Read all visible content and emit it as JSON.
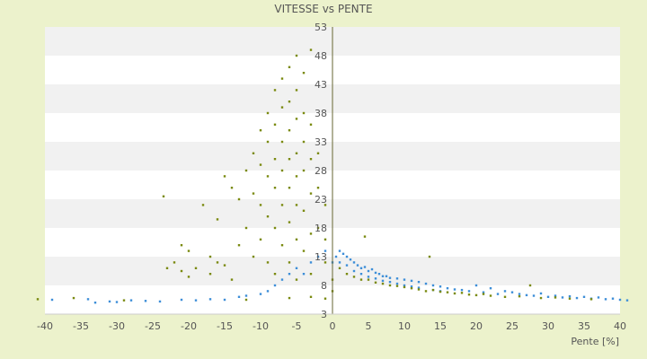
{
  "chart_data": {
    "type": "scatter",
    "title": "VITESSE vs PENTE",
    "xlabel": "Pente [%]",
    "ylabel": "",
    "xlim": [
      -40,
      40
    ],
    "ylim": [
      3,
      53
    ],
    "x_ticks": [
      -40,
      -35,
      -30,
      -25,
      -20,
      -15,
      -10,
      -5,
      0,
      5,
      10,
      15,
      20,
      25,
      30,
      35,
      40
    ],
    "y_ticks": [
      3,
      8,
      13,
      18,
      23,
      28,
      33,
      38,
      43,
      48,
      53
    ],
    "grid": "horizontal alternating bands",
    "legend": "none",
    "colors": {
      "page_background": "#ecf2cc",
      "plot_band_light": "#ffffff",
      "plot_band_dark": "#f1f1f1",
      "blue_points": "#3d8ed8",
      "olive_points": "#7a8a10",
      "zero_axis": "#666633",
      "text": "#555555"
    },
    "series": [
      {
        "color": "#3d8ed8",
        "marker": "dot",
        "points": [
          [
            -39,
            5.5
          ],
          [
            -34,
            5.6
          ],
          [
            -33,
            5
          ],
          [
            -31,
            5.2
          ],
          [
            -30,
            5.1
          ],
          [
            -28,
            5.4
          ],
          [
            -26,
            5.3
          ],
          [
            -24,
            5.2
          ],
          [
            -21,
            5.5
          ],
          [
            -19,
            5.4
          ],
          [
            -17,
            5.6
          ],
          [
            -15,
            5.5
          ],
          [
            -13,
            6
          ],
          [
            -12,
            6.2
          ],
          [
            -10,
            6.5
          ],
          [
            -9,
            7
          ],
          [
            -8,
            8
          ],
          [
            -7,
            9
          ],
          [
            -6,
            10
          ],
          [
            -5,
            11
          ],
          [
            -4,
            10
          ],
          [
            -3,
            12
          ],
          [
            -2,
            13
          ],
          [
            -1,
            14
          ],
          [
            0,
            12
          ],
          [
            0.5,
            13
          ],
          [
            1,
            14
          ],
          [
            1,
            12
          ],
          [
            1.5,
            13.5
          ],
          [
            2,
            13
          ],
          [
            2,
            11.5
          ],
          [
            2.5,
            12.5
          ],
          [
            3,
            12
          ],
          [
            3,
            10.5
          ],
          [
            3.5,
            11.5
          ],
          [
            4,
            11
          ],
          [
            4,
            10
          ],
          [
            4.5,
            11.2
          ],
          [
            5,
            10.5
          ],
          [
            5,
            9.5
          ],
          [
            5.5,
            10.8
          ],
          [
            6,
            10.2
          ],
          [
            6,
            9.2
          ],
          [
            6.5,
            10
          ],
          [
            7,
            9.6
          ],
          [
            7,
            8.8
          ],
          [
            7.5,
            9.6
          ],
          [
            8,
            9.3
          ],
          [
            8,
            8.6
          ],
          [
            9,
            9.2
          ],
          [
            9,
            8.3
          ],
          [
            10,
            9
          ],
          [
            10,
            8
          ],
          [
            11,
            8.8
          ],
          [
            11,
            7.8
          ],
          [
            12,
            8.6
          ],
          [
            12,
            7.6
          ],
          [
            13,
            8.3
          ],
          [
            14,
            8
          ],
          [
            14,
            7.2
          ],
          [
            15,
            7.8
          ],
          [
            15,
            7
          ],
          [
            16,
            7.5
          ],
          [
            17,
            7.3
          ],
          [
            18,
            7.2
          ],
          [
            19,
            7
          ],
          [
            20,
            8
          ],
          [
            21,
            6.8
          ],
          [
            22,
            7.5
          ],
          [
            23,
            6.5
          ],
          [
            24,
            7
          ],
          [
            25,
            6.8
          ],
          [
            26,
            6.5
          ],
          [
            27,
            6.3
          ],
          [
            28,
            6.2
          ],
          [
            29,
            6.6
          ],
          [
            30,
            6
          ],
          [
            31,
            6.2
          ],
          [
            32,
            5.9
          ],
          [
            33,
            6.1
          ],
          [
            34,
            5.8
          ],
          [
            35,
            6
          ],
          [
            36,
            5.7
          ],
          [
            37,
            5.9
          ],
          [
            38,
            5.6
          ],
          [
            39,
            5.7
          ],
          [
            40,
            5.5
          ],
          [
            41,
            5.4
          ]
        ]
      },
      {
        "color": "#7a8a10",
        "marker": "dot",
        "points": [
          [
            -41,
            5.6
          ],
          [
            -36,
            5.8
          ],
          [
            -29,
            5.4
          ],
          [
            -23.5,
            23.5
          ],
          [
            -23,
            11
          ],
          [
            -22,
            12
          ],
          [
            -21,
            15
          ],
          [
            -21,
            10.5
          ],
          [
            -20,
            14
          ],
          [
            -20,
            9.5
          ],
          [
            -19,
            11
          ],
          [
            -18,
            22
          ],
          [
            -17,
            13
          ],
          [
            -17,
            10
          ],
          [
            -16,
            12
          ],
          [
            -16,
            19.5
          ],
          [
            -15,
            27
          ],
          [
            -15,
            11.5
          ],
          [
            -14,
            25
          ],
          [
            -14,
            9
          ],
          [
            -13,
            23
          ],
          [
            -13,
            15
          ],
          [
            -12,
            28
          ],
          [
            -12,
            18
          ],
          [
            -11,
            31
          ],
          [
            -11,
            24
          ],
          [
            -11,
            13
          ],
          [
            -10,
            35
          ],
          [
            -10,
            29
          ],
          [
            -10,
            22
          ],
          [
            -10,
            16
          ],
          [
            -9,
            38
          ],
          [
            -9,
            33
          ],
          [
            -9,
            27
          ],
          [
            -9,
            20
          ],
          [
            -9,
            12
          ],
          [
            -8,
            42
          ],
          [
            -8,
            36
          ],
          [
            -8,
            30
          ],
          [
            -8,
            25
          ],
          [
            -8,
            18
          ],
          [
            -8,
            10
          ],
          [
            -7,
            44
          ],
          [
            -7,
            39
          ],
          [
            -7,
            33
          ],
          [
            -7,
            28
          ],
          [
            -7,
            22
          ],
          [
            -7,
            15
          ],
          [
            -6,
            46
          ],
          [
            -6,
            40
          ],
          [
            -6,
            35
          ],
          [
            -6,
            30
          ],
          [
            -6,
            25
          ],
          [
            -6,
            19
          ],
          [
            -6,
            12
          ],
          [
            -5,
            48
          ],
          [
            -5,
            42
          ],
          [
            -5,
            37
          ],
          [
            -5,
            31
          ],
          [
            -5,
            27
          ],
          [
            -5,
            22
          ],
          [
            -5,
            16
          ],
          [
            -5,
            9
          ],
          [
            -4,
            45
          ],
          [
            -4,
            38
          ],
          [
            -4,
            33
          ],
          [
            -4,
            28
          ],
          [
            -4,
            21
          ],
          [
            -4,
            14
          ],
          [
            -3,
            49
          ],
          [
            -3,
            36
          ],
          [
            -3,
            30
          ],
          [
            -3,
            24
          ],
          [
            -3,
            17
          ],
          [
            -3,
            10
          ],
          [
            -2,
            31
          ],
          [
            -2,
            25
          ],
          [
            -2,
            18
          ],
          [
            -1,
            22
          ],
          [
            -1,
            16
          ],
          [
            -1,
            12
          ],
          [
            0,
            9
          ],
          [
            0,
            7
          ],
          [
            1,
            11
          ],
          [
            2,
            10
          ],
          [
            3,
            9.5
          ],
          [
            4,
            9
          ],
          [
            4.5,
            16.5
          ],
          [
            5,
            9
          ],
          [
            6,
            8.5
          ],
          [
            7,
            8.3
          ],
          [
            8,
            8
          ],
          [
            9,
            7.9
          ],
          [
            10,
            7.7
          ],
          [
            11,
            7.5
          ],
          [
            12,
            7.3
          ],
          [
            13,
            7
          ],
          [
            13.5,
            13
          ],
          [
            14,
            7.2
          ],
          [
            15,
            6.9
          ],
          [
            16,
            6.8
          ],
          [
            17,
            6.6
          ],
          [
            18,
            6.7
          ],
          [
            19,
            6.4
          ],
          [
            20,
            6.3
          ],
          [
            21,
            6.5
          ],
          [
            22,
            6.2
          ],
          [
            24,
            6
          ],
          [
            26,
            6.1
          ],
          [
            27.5,
            8
          ],
          [
            29,
            5.8
          ],
          [
            31,
            5.9
          ],
          [
            33,
            5.7
          ],
          [
            36,
            5.6
          ],
          [
            -12,
            5.5
          ],
          [
            -6,
            5.8
          ],
          [
            -3,
            6
          ],
          [
            -1,
            5.7
          ]
        ]
      }
    ]
  }
}
